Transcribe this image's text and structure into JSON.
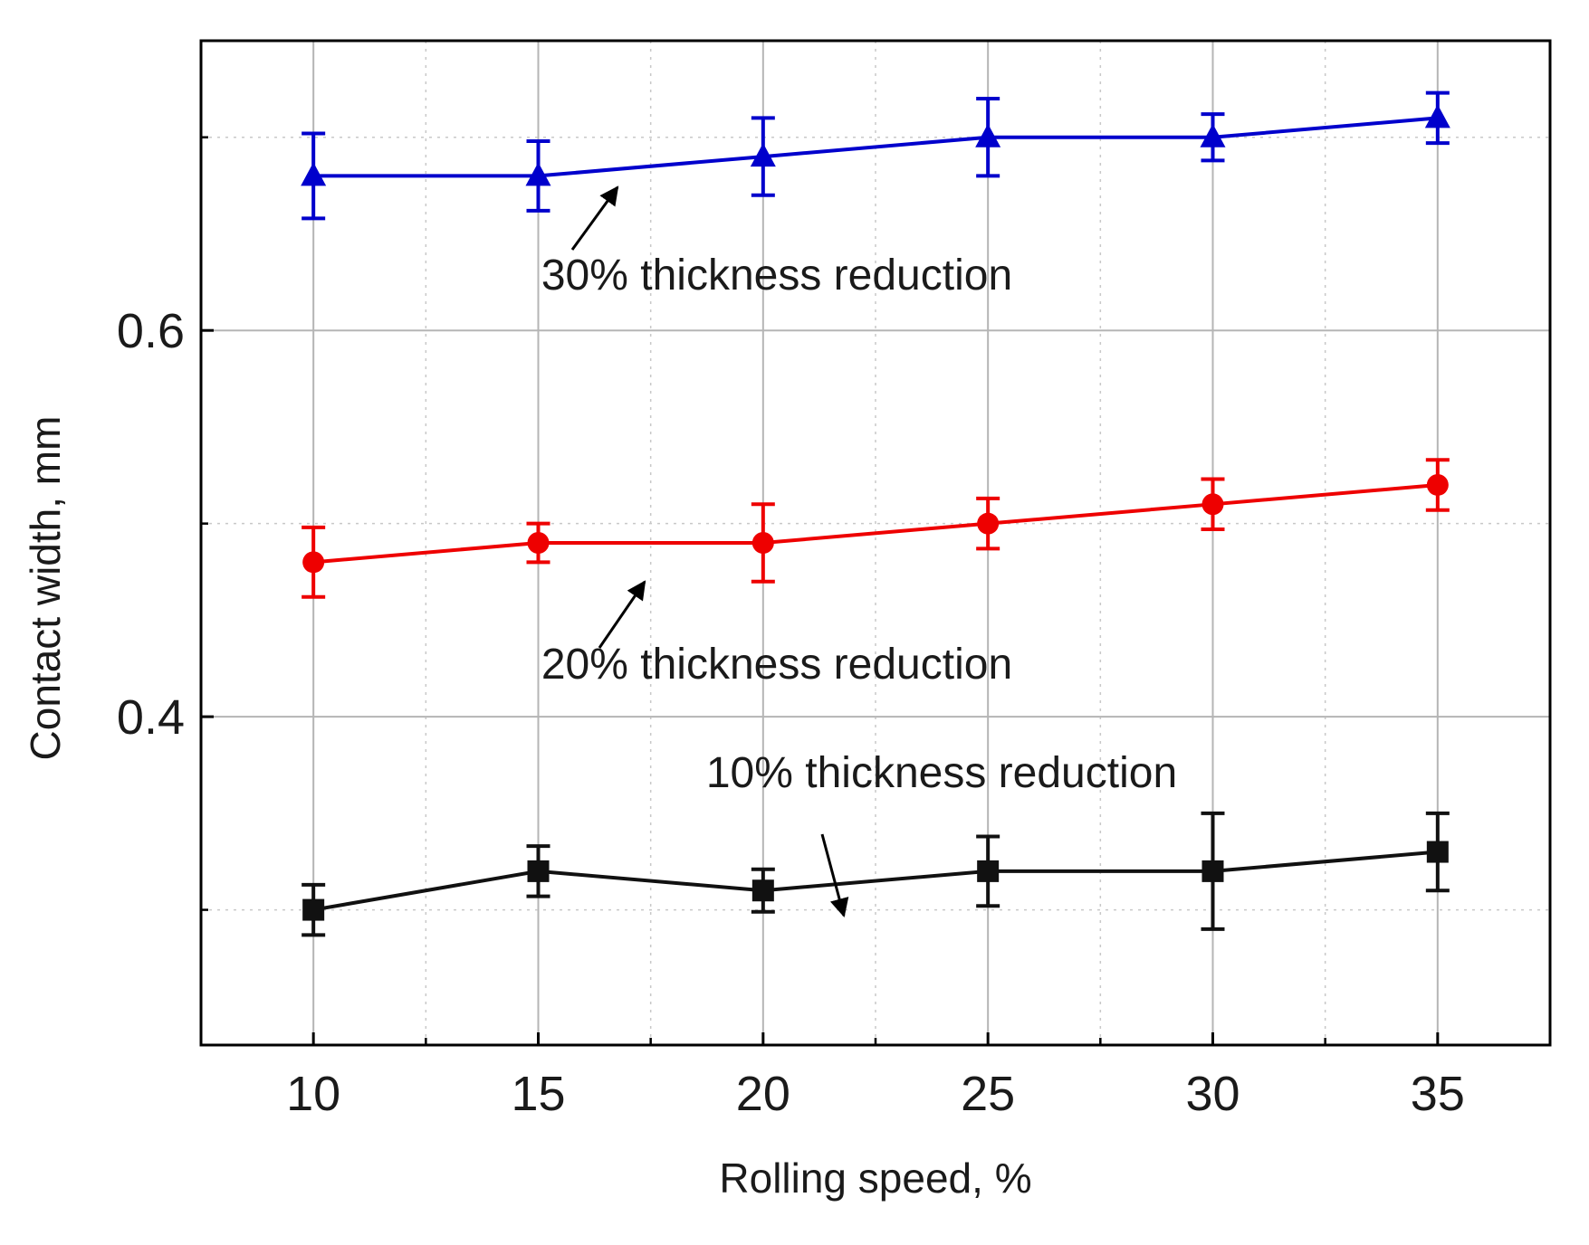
{
  "chart_data": {
    "type": "line",
    "title": "",
    "xlabel": "Rolling speed, %",
    "ylabel": "Contact width, mm",
    "x": [
      10,
      15,
      20,
      25,
      30,
      35
    ],
    "xlim": [
      7.5,
      37.5
    ],
    "ylim": [
      0.23,
      0.75
    ],
    "xticks": [
      10,
      15,
      20,
      25,
      30,
      35
    ],
    "xtick_labels": [
      "10",
      "15",
      "20",
      "25",
      "30",
      "35"
    ],
    "yticks_labeled": [
      0.4,
      0.6
    ],
    "ytick_labels": [
      "0.4",
      "0.6"
    ],
    "grid": true,
    "series": [
      {
        "name": "30% thickness reduction",
        "color": "#0000cc",
        "marker": "triangle",
        "values": [
          0.68,
          0.68,
          0.69,
          0.7,
          0.7,
          0.71
        ],
        "errors": [
          0.022,
          0.018,
          0.02,
          0.02,
          0.012,
          0.013
        ]
      },
      {
        "name": "20% thickness reduction",
        "color": "#ee0000",
        "marker": "circle",
        "values": [
          0.48,
          0.49,
          0.49,
          0.5,
          0.51,
          0.52
        ],
        "errors": [
          0.018,
          0.01,
          0.02,
          0.013,
          0.013,
          0.013
        ]
      },
      {
        "name": "10% thickness reduction",
        "color": "#111111",
        "marker": "square",
        "values": [
          0.3,
          0.32,
          0.31,
          0.32,
          0.32,
          0.33
        ],
        "errors": [
          0.013,
          0.013,
          0.011,
          0.018,
          0.03,
          0.02
        ]
      }
    ],
    "annotations": [
      {
        "text": "30% thickness reduction",
        "series": 0
      },
      {
        "text": "20% thickness reduction",
        "series": 1
      },
      {
        "text": "10% thickness reduction",
        "series": 2
      }
    ]
  }
}
